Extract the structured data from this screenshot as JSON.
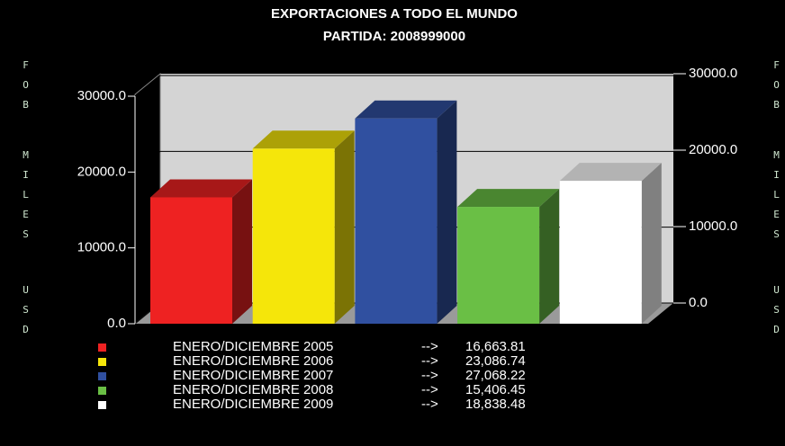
{
  "chart_data": {
    "type": "bar3d",
    "title": "EXPORTACIONES A TODO EL MUNDO",
    "subtitle": "PARTIDA: 2008999000",
    "y_label": [
      "FOB",
      "MILES",
      "USD"
    ],
    "categories": [
      "ENERO/DICIEMBRE 2005",
      "ENERO/DICIEMBRE 2006",
      "ENERO/DICIEMBRE 2007",
      "ENERO/DICIEMBRE 2008",
      "ENERO/DICIEMBRE 2009"
    ],
    "legend_separator": "-->",
    "values": [
      16663.81,
      23086.74,
      27068.22,
      15406.45,
      18838.48
    ],
    "value_labels": [
      "16,663.81",
      "23,086.74",
      "27,068.22",
      "15,406.45",
      "18,838.48"
    ],
    "colors": [
      "#ee2222",
      "#f5e60a",
      "#3050a0",
      "#6abf45",
      "#ffffff"
    ],
    "ylim": [
      0,
      30000
    ],
    "yticks": [
      {
        "value": 0,
        "label": "0.0"
      },
      {
        "value": 10000,
        "label": "10000.0"
      },
      {
        "value": 20000,
        "label": "20000.0"
      },
      {
        "value": 30000,
        "label": "30000.0"
      }
    ],
    "y2lim": [
      0,
      30000
    ],
    "y2ticks": [
      {
        "value": 0,
        "label": "0.0"
      },
      {
        "value": 10000,
        "label": "10000.0"
      },
      {
        "value": 20000,
        "label": "20000.0"
      },
      {
        "value": 30000,
        "label": "30000.0"
      }
    ],
    "grid": true
  }
}
